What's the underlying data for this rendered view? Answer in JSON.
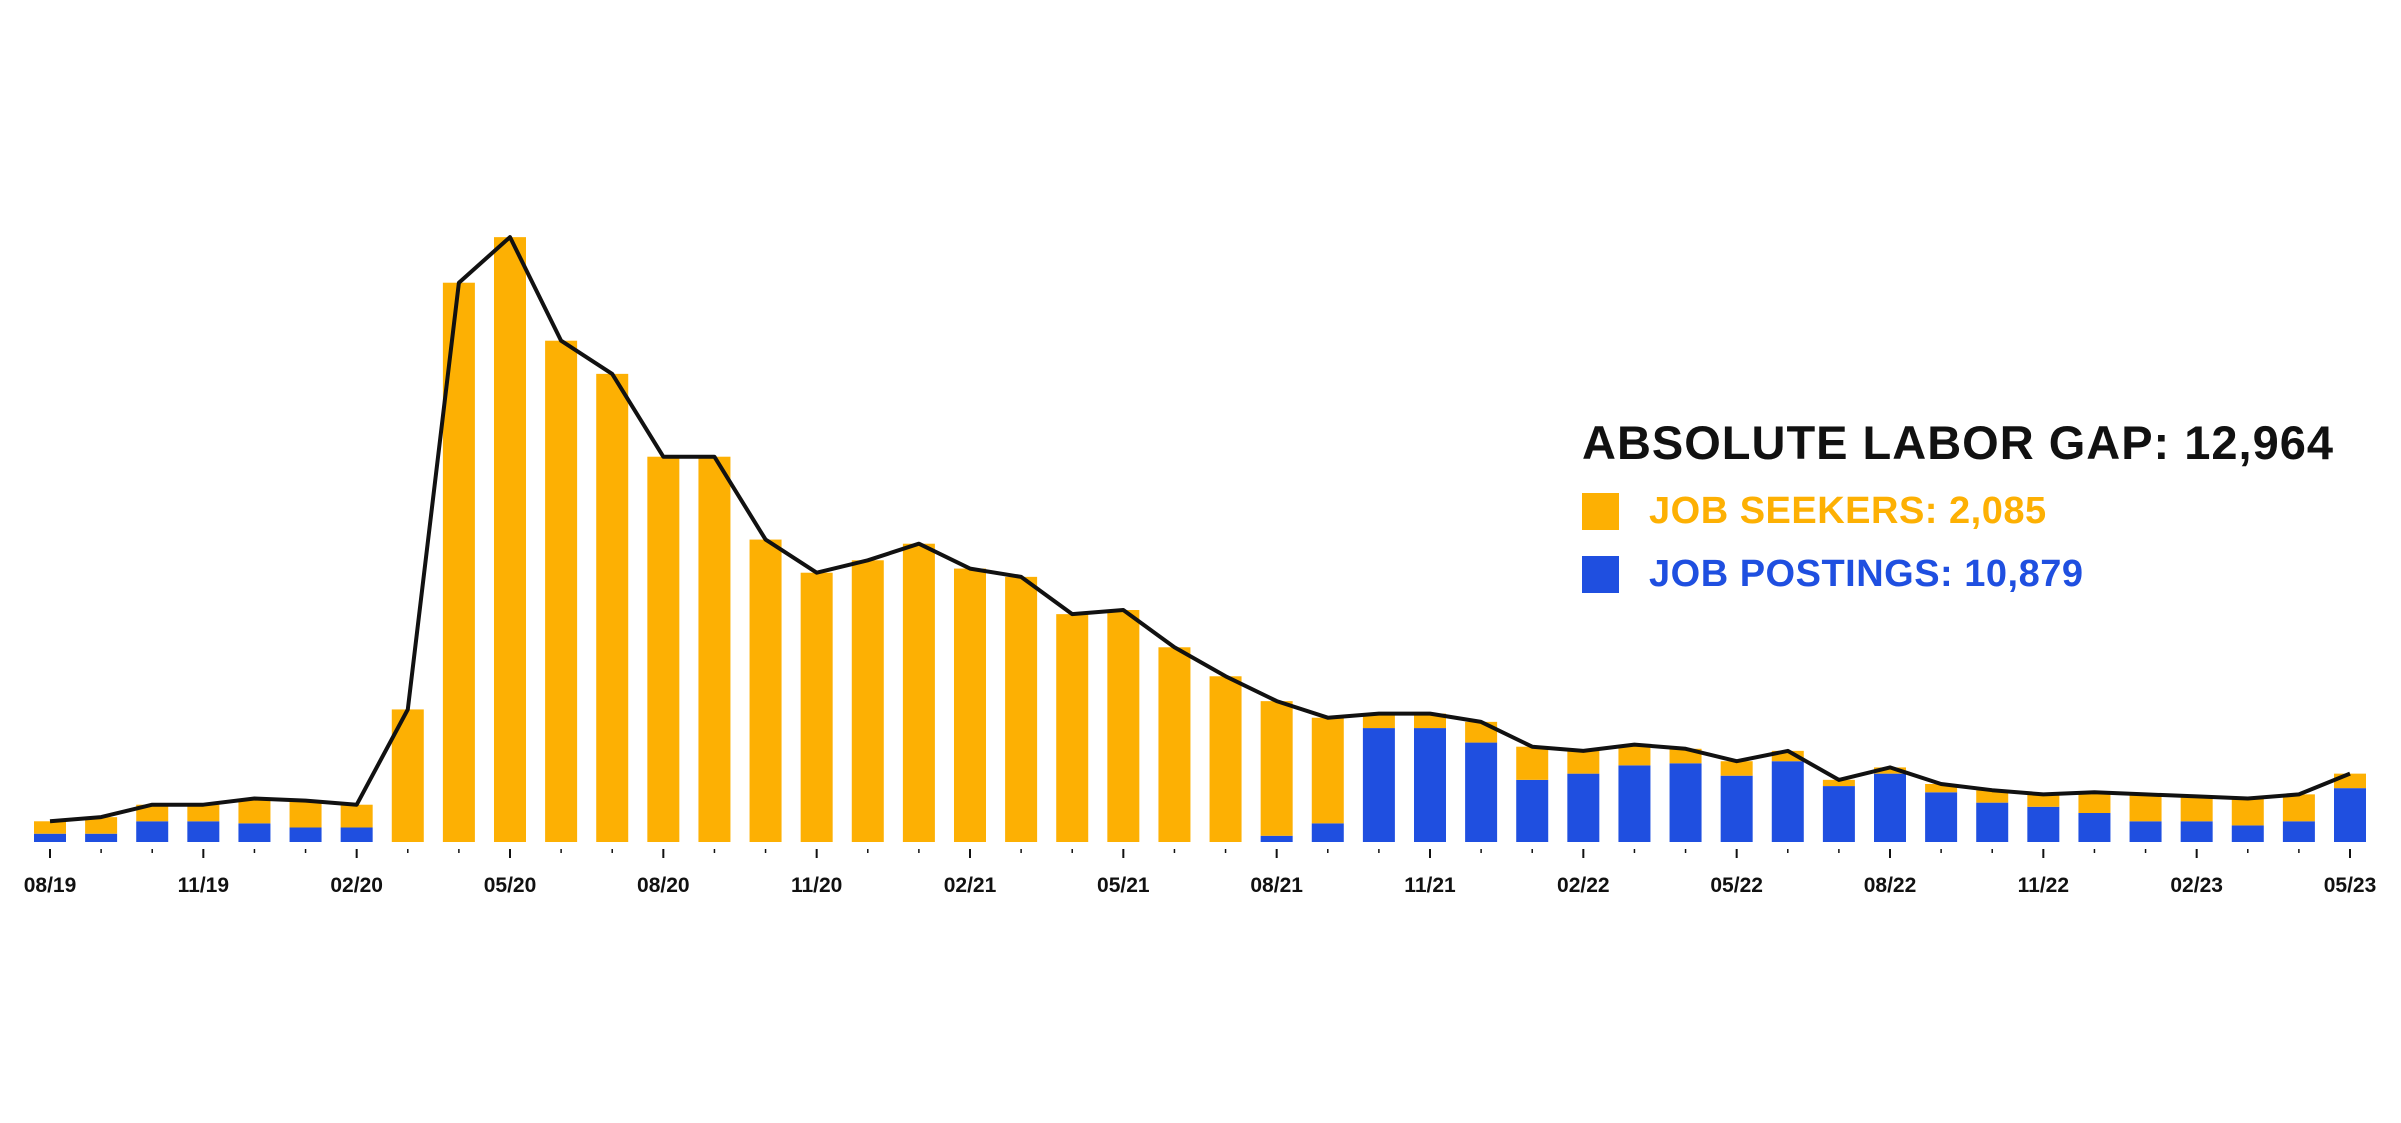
{
  "legend": {
    "title_label": "ABSOLUTE LABOR GAP:",
    "title_value": "12,964",
    "seekers_label": "JOB SEEKERS:",
    "seekers_value": "2,085",
    "postings_label": "JOB POSTINGS:",
    "postings_value": "10,879"
  },
  "colors": {
    "seekers": "#FDB003",
    "postings": "#1F4FE0",
    "line": "#111111"
  },
  "chart_data": {
    "type": "bar",
    "stacked": true,
    "x": [
      "08/19",
      "09/19",
      "10/19",
      "11/19",
      "12/19",
      "01/20",
      "02/20",
      "03/20",
      "04/20",
      "05/20",
      "06/20",
      "07/20",
      "08/20",
      "09/20",
      "10/20",
      "11/20",
      "12/20",
      "01/21",
      "02/21",
      "03/21",
      "04/21",
      "05/21",
      "06/21",
      "07/21",
      "08/21",
      "09/21",
      "10/21",
      "11/21",
      "12/21",
      "01/22",
      "02/22",
      "03/22",
      "04/22",
      "05/22",
      "06/22",
      "07/22",
      "08/22",
      "09/22",
      "10/22",
      "11/22",
      "12/22",
      "01/23",
      "02/23",
      "03/23",
      "04/23",
      "05/23"
    ],
    "tick_labels": [
      "08/19",
      "11/19",
      "02/20",
      "05/20",
      "08/20",
      "11/20",
      "02/21",
      "05/21",
      "08/21",
      "11/21",
      "02/22",
      "05/22",
      "08/22",
      "11/22",
      "02/23",
      "05/23"
    ],
    "ylim": [
      0,
      140
    ],
    "series": [
      {
        "name": "JOB POSTINGS",
        "stack": "bottom",
        "values": [
          2,
          2,
          5,
          5,
          4.5,
          3.5,
          3.5,
          0,
          0,
          0,
          0,
          0,
          0,
          0,
          0,
          0,
          0,
          0,
          0,
          0,
          0,
          0,
          0,
          0,
          1.5,
          4.5,
          27.5,
          27.5,
          24,
          15,
          16.5,
          18.5,
          19,
          16,
          19.5,
          13.5,
          16.5,
          12,
          9.5,
          8.5,
          7,
          5,
          5,
          4,
          5,
          13
        ]
      },
      {
        "name": "JOB SEEKERS",
        "stack": "top",
        "values": [
          3,
          4,
          4,
          4,
          6,
          6.5,
          5.5,
          32,
          135,
          146,
          121,
          113,
          93,
          93,
          73,
          65,
          68,
          72,
          66,
          64,
          55,
          56,
          47,
          40,
          32.5,
          25.5,
          3.5,
          3.5,
          5,
          8,
          5.5,
          5,
          3.5,
          3.5,
          2.5,
          1.5,
          1.5,
          2,
          3,
          3,
          5,
          6.5,
          6,
          6.5,
          6.5,
          3.5
        ]
      }
    ],
    "line": {
      "name": "total",
      "values": [
        5,
        6,
        9,
        9,
        10.5,
        10,
        9,
        32,
        135,
        146,
        121,
        113,
        93,
        93,
        73,
        65,
        68,
        72,
        66,
        64,
        55,
        56,
        47,
        40,
        34,
        30,
        31,
        31,
        29,
        23,
        22,
        23.5,
        22.5,
        19.5,
        22,
        15,
        18,
        14,
        12.5,
        11.5,
        12,
        11.5,
        11,
        10.5,
        11.5,
        16.5
      ]
    }
  }
}
